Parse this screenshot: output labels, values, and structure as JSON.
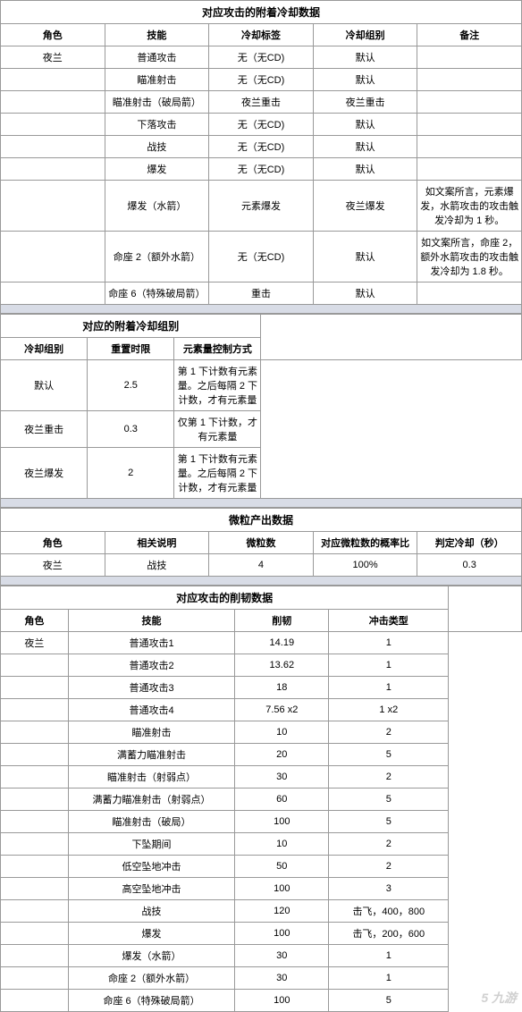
{
  "section1": {
    "title": "对应攻击的附着冷却数据",
    "headers": [
      "角色",
      "技能",
      "冷却标签",
      "冷却组别",
      "备注"
    ],
    "rows": [
      [
        "夜兰",
        "普通攻击",
        "无（无CD)",
        "默认",
        ""
      ],
      [
        "",
        "瞄准射击",
        "无（无CD)",
        "默认",
        ""
      ],
      [
        "",
        "瞄准射击（破局箭）",
        "夜兰重击",
        "夜兰重击",
        ""
      ],
      [
        "",
        "下落攻击",
        "无（无CD)",
        "默认",
        ""
      ],
      [
        "",
        "战技",
        "无（无CD)",
        "默认",
        ""
      ],
      [
        "",
        "爆发",
        "无（无CD)",
        "默认",
        ""
      ],
      [
        "",
        "爆发（水箭）",
        "元素爆发",
        "夜兰爆发",
        "如文案所言，元素爆发，水箭攻击的攻击触发冷却为 1 秒。"
      ],
      [
        "",
        "命座 2（额外水箭）",
        "无（无CD)",
        "默认",
        "如文案所言，命座 2，额外水箭攻击的攻击触发冷却为 1.8 秒。"
      ],
      [
        "",
        "命座 6（特殊破局箭）",
        "重击",
        "默认",
        ""
      ]
    ]
  },
  "section2": {
    "title": "对应的附着冷却组别",
    "headers": [
      "冷却组别",
      "重置时限",
      "元素量控制方式"
    ],
    "rows": [
      [
        "默认",
        "2.5",
        "第 1 下计数有元素量。之后每隔 2 下计数，才有元素量"
      ],
      [
        "夜兰重击",
        "0.3",
        "仅第 1 下计数，才有元素量"
      ],
      [
        "夜兰爆发",
        "2",
        "第 1 下计数有元素量。之后每隔 2 下计数，才有元素量"
      ]
    ]
  },
  "section3": {
    "title": "微粒产出数据",
    "headers": [
      "角色",
      "相关说明",
      "微粒数",
      "对应微粒数的概率比",
      "判定冷却（秒）"
    ],
    "rows": [
      [
        "夜兰",
        "战技",
        "4",
        "100%",
        "0.3"
      ]
    ]
  },
  "section4": {
    "title": "对应攻击的削韧数据",
    "headers": [
      "角色",
      "技能",
      "削韧",
      "冲击类型"
    ],
    "rows": [
      [
        "夜兰",
        "普通攻击1",
        "14.19",
        "1"
      ],
      [
        "",
        "普通攻击2",
        "13.62",
        "1"
      ],
      [
        "",
        "普通攻击3",
        "18",
        "1"
      ],
      [
        "",
        "普通攻击4",
        "7.56 x2",
        "1 x2"
      ],
      [
        "",
        "瞄准射击",
        "10",
        "2"
      ],
      [
        "",
        "满蓄力瞄准射击",
        "20",
        "5"
      ],
      [
        "",
        "瞄准射击（射弱点）",
        "30",
        "2"
      ],
      [
        "",
        "满蓄力瞄准射击（射弱点）",
        "60",
        "5"
      ],
      [
        "",
        "瞄准射击（破局）",
        "100",
        "5"
      ],
      [
        "",
        "下坠期间",
        "10",
        "2"
      ],
      [
        "",
        "低空坠地冲击",
        "50",
        "2"
      ],
      [
        "",
        "高空坠地冲击",
        "100",
        "3"
      ],
      [
        "",
        "战技",
        "120",
        "击飞，400，800"
      ],
      [
        "",
        "爆发",
        "100",
        "击飞，200，600"
      ],
      [
        "",
        "爆发（水箭）",
        "30",
        "1"
      ],
      [
        "",
        "命座 2（额外水箭）",
        "30",
        "1"
      ],
      [
        "",
        "命座 6（特殊破局箭）",
        "100",
        "5"
      ]
    ]
  },
  "watermark": "5 九游"
}
